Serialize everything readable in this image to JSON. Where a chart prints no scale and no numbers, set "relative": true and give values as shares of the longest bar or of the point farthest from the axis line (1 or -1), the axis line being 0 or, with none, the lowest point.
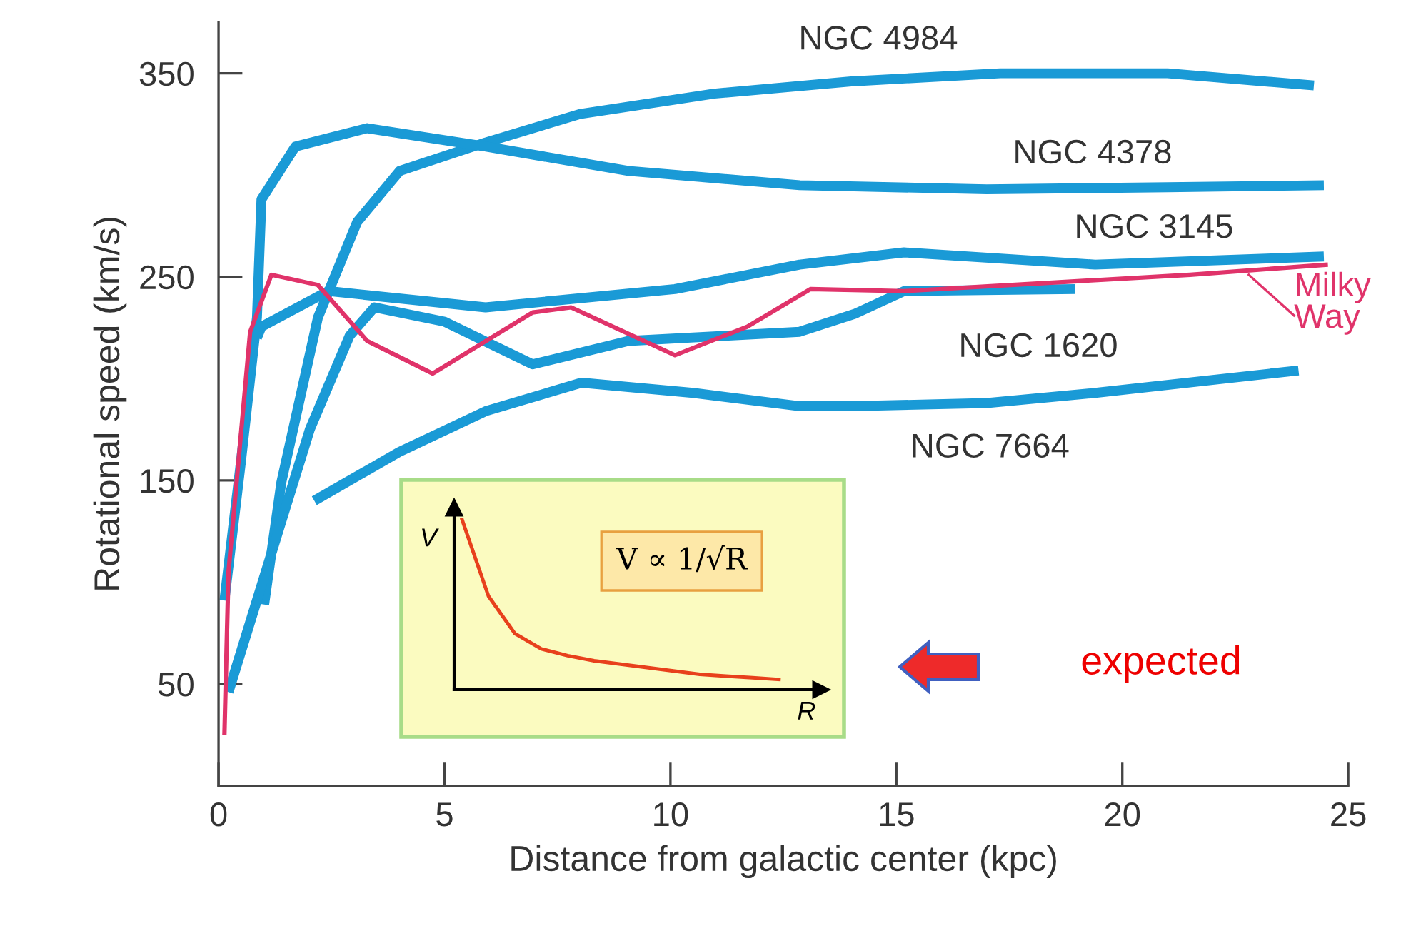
{
  "chart_data": [
    {
      "type": "line",
      "xlabel": "Distance from galactic center (kpc)",
      "ylabel": "Rotational speed (km/s)",
      "xlim": [
        0,
        25
      ],
      "ylim": [
        0,
        375
      ],
      "xticks": [
        0,
        5,
        10,
        15,
        20,
        25
      ],
      "yticks": [
        50,
        150,
        250,
        350
      ],
      "grid": false,
      "line_style": "solid",
      "series": [
        {
          "name": "NGC 4984",
          "color": "#1a9ad6",
          "x": [
            1.01,
            1.39,
            2.2,
            3.07,
            4.01,
            5.91,
            8.0,
            10.97,
            14.0,
            17.3,
            21.0,
            24.24
          ],
          "values": [
            89,
            149,
            230,
            277,
            302,
            316,
            330,
            340,
            346,
            350,
            350,
            344
          ]
        },
        {
          "name": "NGC 4378",
          "color": "#1a9ad6",
          "x": [
            0.13,
            0.5,
            0.85,
            0.95,
            1.7,
            3.29,
            5.9,
            9.07,
            12.86,
            17.0,
            21.0,
            24.46
          ],
          "values": [
            91,
            160,
            230,
            288,
            314,
            323,
            314,
            302,
            295,
            293,
            294,
            295
          ]
        },
        {
          "name": "NGC 3145",
          "color": "#1a9ad6",
          "x": [
            0.85,
            0.95,
            2.43,
            5.91,
            10.1,
            12.86,
            15.17,
            19.4,
            24.46
          ],
          "values": [
            220,
            225.5,
            243,
            235,
            244,
            256,
            262,
            256,
            260
          ]
        },
        {
          "name": "NGC 1620",
          "color": "#1a9ad6",
          "x": [
            0.22,
            2.02,
            2.9,
            3.45,
            5.0,
            6.95,
            9.07,
            12.86,
            14.1,
            15.17,
            18.96
          ],
          "values": [
            46,
            175,
            221,
            235,
            228,
            207,
            218.5,
            223,
            232,
            243,
            244
          ]
        },
        {
          "name": "NGC 7664",
          "color": "#1a9ad6",
          "x": [
            2.12,
            4.0,
            5.91,
            8.03,
            10.5,
            12.86,
            14.1,
            17.0,
            19.4,
            23.9
          ],
          "values": [
            140,
            164,
            184,
            198,
            193,
            186.5,
            186.5,
            188,
            193,
            204
          ]
        },
        {
          "name": "Milky Way",
          "color": "#e0336a",
          "x": [
            0.13,
            0.22,
            0.7,
            1.17,
            2.2,
            3.29,
            4.74,
            6.95,
            7.8,
            10.1,
            11.7,
            13.1,
            15.17,
            21.5,
            24.55
          ],
          "values": [
            25,
            105,
            223,
            251,
            246,
            218.5,
            202.5,
            232.5,
            235,
            211.5,
            225.5,
            244,
            243,
            251,
            256
          ]
        }
      ],
      "annotations": [
        "expected"
      ]
    },
    {
      "type": "line",
      "relative": true,
      "xlabel": "R",
      "ylabel": "V",
      "annotations": [
        "V ∝ 1/√R"
      ],
      "grid": false,
      "categories": [
        null,
        null,
        null,
        null,
        null,
        null,
        null,
        null,
        null,
        null,
        null,
        null,
        null
      ],
      "series": [
        {
          "color": "#e8401c",
          "values": [
            1,
            0.55,
            0.33,
            0.24,
            0.2,
            0.17,
            0.15,
            0.13,
            0.11,
            0.09,
            0.08,
            0.07,
            0.06
          ]
        }
      ]
    }
  ]
}
